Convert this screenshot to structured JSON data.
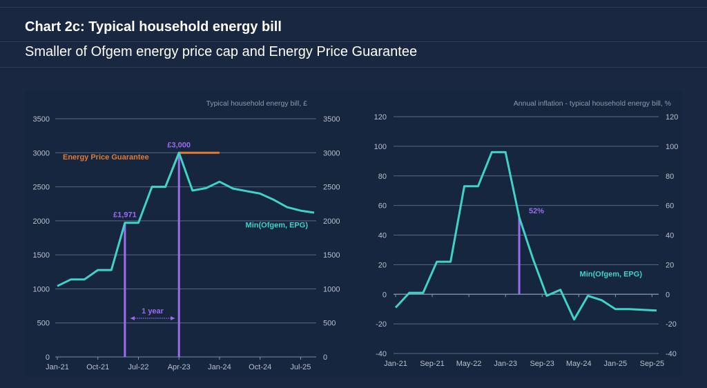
{
  "header": {
    "title": "Chart 2c: Typical household energy bill",
    "subtitle": "Smaller of Ofgem energy price cap and Energy Price Guarantee"
  },
  "colors": {
    "background": "#1a2740",
    "panel": "#16263f",
    "grid": "#5a6a85",
    "tick_text": "#b8c0cc",
    "ofgem_line": "#3fd3c8",
    "epg_line": "#e07b32",
    "annotation": "#9b6cf0"
  },
  "chart_data": [
    {
      "type": "line",
      "title": "Typical household energy bill, £",
      "xlabel": "",
      "ylabel": "Typical household energy bill, £",
      "ylim": [
        0,
        3500
      ],
      "yticks": [
        0,
        500,
        1000,
        1500,
        2000,
        2500,
        3000,
        3500
      ],
      "xlim": [
        "Jan-21",
        "Oct-25"
      ],
      "xtick_labels": [
        "Jan-21",
        "Oct-21",
        "Jul-22",
        "Apr-23",
        "Jan-24",
        "Oct-24",
        "Jul-25"
      ],
      "xtick_months": [
        0,
        9,
        18,
        27,
        36,
        45,
        54
      ],
      "grid": true,
      "dual_y_axis": true,
      "series": [
        {
          "name": "Min(Ofgem, EPG)",
          "color": "#3fd3c8",
          "x_months": [
            0,
            3,
            6,
            9,
            12,
            15,
            18,
            21,
            24,
            27,
            30,
            33,
            36,
            39,
            42,
            45,
            48,
            51,
            54,
            57
          ],
          "values": [
            1042,
            1138,
            1138,
            1277,
            1277,
            1971,
            1971,
            2500,
            2500,
            3000,
            2445,
            2480,
            2575,
            2474,
            2437,
            2400,
            2310,
            2200,
            2150,
            2120
          ]
        },
        {
          "name": "Energy Price Guarantee",
          "color": "#e07b32",
          "x_months": [
            21,
            24,
            27,
            30,
            33,
            36
          ],
          "values": [
            2500,
            2500,
            3000,
            3000,
            3000,
            3000
          ]
        }
      ],
      "annotations": [
        {
          "text": "£1,971",
          "x_month": 15,
          "value": 1971
        },
        {
          "text": "£3,000",
          "x_month": 27,
          "value": 3000
        },
        {
          "text": "1 year",
          "from_month": 15,
          "to_month": 27,
          "value": 700
        }
      ],
      "legend_labels": [
        {
          "text": "Energy Price Guarantee",
          "series": 1
        },
        {
          "text": "Min(Ofgem, EPG)",
          "series": 0
        }
      ]
    },
    {
      "type": "line",
      "title": "Annual inflation - typical household energy bill, %",
      "xlabel": "",
      "ylabel": "Annual inflation - typical household energy bill, %",
      "ylim": [
        -40,
        120
      ],
      "yticks": [
        -40,
        -20,
        0,
        20,
        40,
        60,
        80,
        100,
        120
      ],
      "xlim": [
        "Jan-21",
        "Sep-25"
      ],
      "xtick_labels": [
        "Jan-21",
        "Sep-21",
        "May-22",
        "Jan-23",
        "Sep-23",
        "May-24",
        "Jan-25",
        "Sep-25"
      ],
      "xtick_months": [
        0,
        8,
        16,
        24,
        32,
        40,
        48,
        56
      ],
      "grid": true,
      "dual_y_axis": true,
      "series": [
        {
          "name": "Min(Ofgem, EPG)",
          "color": "#3fd3c8",
          "x_months": [
            0,
            3,
            6,
            9,
            12,
            15,
            18,
            21,
            24,
            27,
            30,
            33,
            36,
            39,
            42,
            45,
            48,
            51,
            54,
            57
          ],
          "values": [
            -9,
            1,
            1,
            22,
            22,
            73,
            73,
            96,
            96,
            52,
            24,
            -1,
            3,
            -17,
            -1,
            -4,
            -10,
            -10,
            -10.5,
            -11
          ]
        }
      ],
      "annotations": [
        {
          "text": "52%",
          "x_month": 27,
          "value": 52
        }
      ],
      "legend_labels": [
        {
          "text": "Min(Ofgem, EPG)",
          "series": 0
        }
      ]
    }
  ]
}
